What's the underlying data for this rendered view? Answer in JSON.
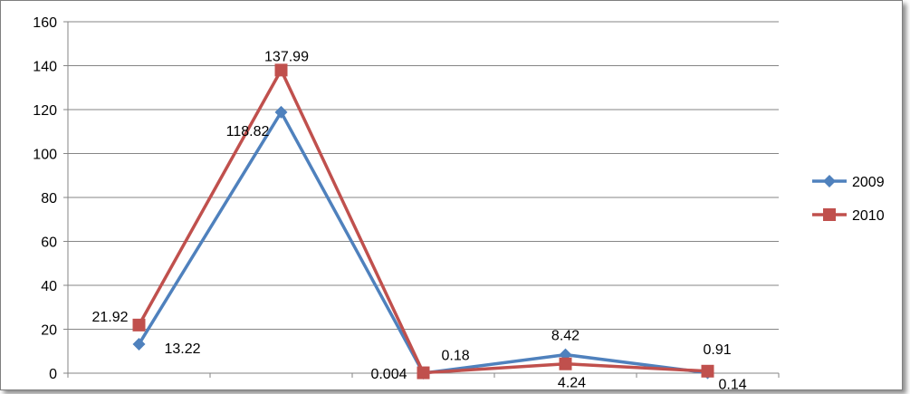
{
  "chart_data": {
    "type": "line",
    "title": "",
    "xlabel": "",
    "ylabel": "",
    "categories": [
      "",
      "",
      "",
      "",
      ""
    ],
    "ylim": [
      0,
      160
    ],
    "yticks": [
      "0",
      "20",
      "40",
      "60",
      "80",
      "100",
      "120",
      "140",
      "160"
    ],
    "grid": true,
    "legend_position": "right",
    "series": [
      {
        "name": "2009",
        "color": "#4f81bd",
        "marker": "diamond",
        "values": [
          13.22,
          118.82,
          0.004,
          8.42,
          0.14
        ],
        "labels": [
          "13.22",
          "118.82",
          "0.004",
          "8.42",
          "0.14"
        ]
      },
      {
        "name": "2010",
        "color": "#c0504d",
        "marker": "square",
        "values": [
          21.92,
          137.99,
          0.18,
          4.24,
          0.91
        ],
        "labels": [
          "21.92",
          "137.99",
          "0.18",
          "4.24",
          "0.91"
        ]
      }
    ]
  }
}
